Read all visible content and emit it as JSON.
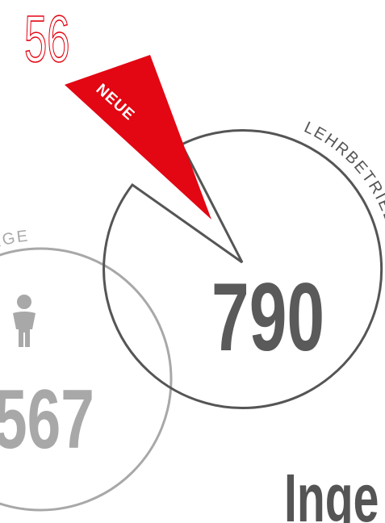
{
  "badge": "56",
  "wedge_label": "NEUE",
  "arc_label": "LEHRBETRIEBE",
  "main_value": "790",
  "left_label": "INGE",
  "left_value": "567",
  "heading": "Inge"
}
